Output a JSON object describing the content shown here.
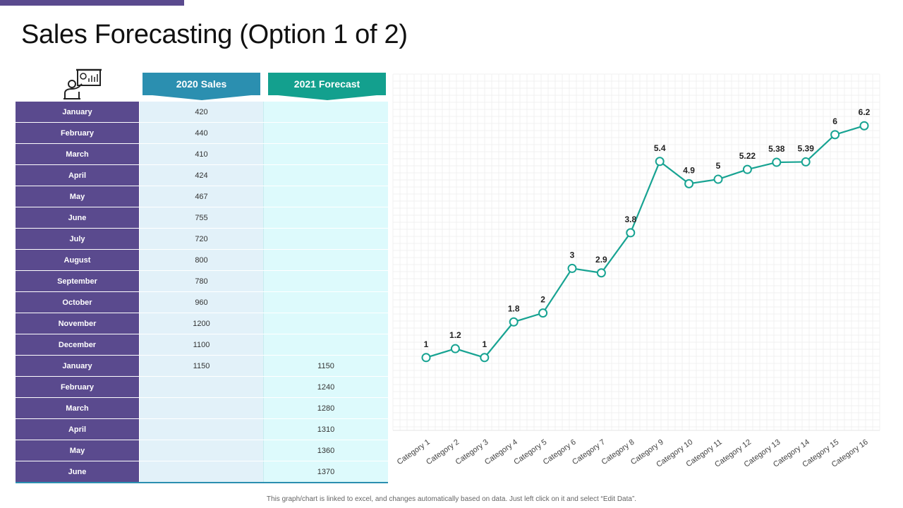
{
  "slide": {
    "title": "Sales Forecasting (Option 1 of 2)",
    "footnote": "This graph/chart is linked to excel, and changes automatically  based on data. Just left click on it and select “Edit Data”.",
    "accent_color": "#5a4a8e"
  },
  "icon": {
    "name": "presenter-chart-icon"
  },
  "table": {
    "headers": [
      "2020 Sales",
      "2021 Forecast"
    ],
    "header_colors": [
      "#2b8fb0",
      "#13a08e"
    ],
    "rows": [
      {
        "month": "January",
        "sales_2020": "420",
        "forecast_2021": ""
      },
      {
        "month": "February",
        "sales_2020": "440",
        "forecast_2021": ""
      },
      {
        "month": "March",
        "sales_2020": "410",
        "forecast_2021": ""
      },
      {
        "month": "April",
        "sales_2020": "424",
        "forecast_2021": ""
      },
      {
        "month": "May",
        "sales_2020": "467",
        "forecast_2021": ""
      },
      {
        "month": "June",
        "sales_2020": "755",
        "forecast_2021": ""
      },
      {
        "month": "July",
        "sales_2020": "720",
        "forecast_2021": ""
      },
      {
        "month": "August",
        "sales_2020": "800",
        "forecast_2021": ""
      },
      {
        "month": "September",
        "sales_2020": "780",
        "forecast_2021": ""
      },
      {
        "month": "October",
        "sales_2020": "960",
        "forecast_2021": ""
      },
      {
        "month": "November",
        "sales_2020": "1200",
        "forecast_2021": ""
      },
      {
        "month": "December",
        "sales_2020": "1100",
        "forecast_2021": ""
      },
      {
        "month": "January",
        "sales_2020": "1150",
        "forecast_2021": "1150"
      },
      {
        "month": "February",
        "sales_2020": "",
        "forecast_2021": "1240"
      },
      {
        "month": "March",
        "sales_2020": "",
        "forecast_2021": "1280"
      },
      {
        "month": "April",
        "sales_2020": "",
        "forecast_2021": "1310"
      },
      {
        "month": "May",
        "sales_2020": "",
        "forecast_2021": "1360"
      },
      {
        "month": "June",
        "sales_2020": "",
        "forecast_2021": "1370"
      }
    ]
  },
  "chart_data": {
    "type": "line",
    "categories": [
      "Category 1",
      "Category 2",
      "Category 3",
      "Category 4",
      "Category 5",
      "Category 6",
      "Category 7",
      "Category 8",
      "Category 9",
      "Category 10",
      "Category 11",
      "Category 12",
      "Category 13",
      "Category 14",
      "Category 15",
      "Category 16"
    ],
    "series": [
      {
        "values": [
          1,
          1.2,
          1,
          1.8,
          2,
          3,
          2.9,
          3.8,
          5.4,
          4.9,
          5,
          5.22,
          5.38,
          5.39,
          6,
          6.2
        ],
        "labels": [
          "1",
          "1.2",
          "1",
          "1.8",
          "2",
          "3",
          "2.9",
          "3.8",
          "5.4",
          "4.9",
          "5",
          "5.22",
          "5.38",
          "5.39",
          "6",
          "6.2"
        ],
        "color": "#17a392"
      }
    ],
    "ylim": [
      -0.0,
      7.0
    ],
    "grid": true,
    "legend": "none",
    "marker": "hollow-circle"
  }
}
